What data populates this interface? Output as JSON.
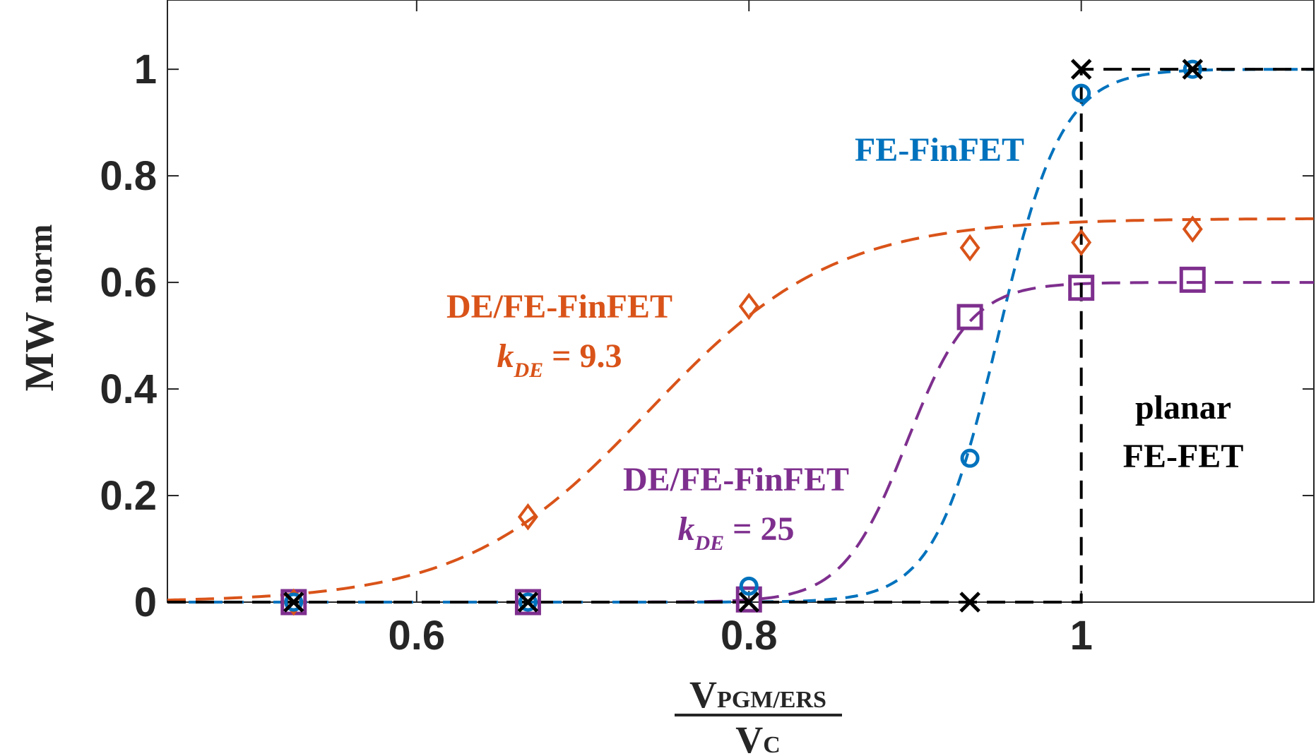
{
  "chart_data": {
    "type": "line",
    "xlabel": {
      "numerator": "V",
      "numerator_sub": "PGM/ERS",
      "denominator": "V",
      "denominator_sub": "C"
    },
    "ylabel": {
      "main": "MW",
      "sub": "norm"
    },
    "xlim": [
      0.45,
      1.14
    ],
    "ylim": [
      0,
      1.13
    ],
    "xticks": [
      0.6,
      0.8,
      1
    ],
    "xtick_labels": [
      "0.6",
      "0.8",
      "1"
    ],
    "yticks": [
      0,
      0.2,
      0.4,
      0.6,
      0.8,
      1
    ],
    "ytick_labels": [
      "0",
      "0.2",
      "0.4",
      "0.6",
      "0.8",
      "1"
    ],
    "grid": false,
    "colors": {
      "fe_finfet": "#0072BD",
      "de93": "#D95319",
      "de25": "#7E2F8E",
      "planar": "#000000",
      "axis": "#262626"
    },
    "series": [
      {
        "key": "fe_finfet",
        "marker": "circle",
        "x": [
          0.526,
          0.667,
          0.8,
          0.933,
          1.0,
          1.067
        ],
        "y": [
          0.0,
          0.0,
          0.03,
          0.27,
          0.955,
          1.0
        ],
        "fit": {
          "x0": 0.95,
          "k": 52,
          "ymax": 1.0
        }
      },
      {
        "key": "de93",
        "marker": "diamond",
        "x": [
          0.526,
          0.667,
          0.8,
          0.933,
          1.0,
          1.067
        ],
        "y": [
          0.0,
          0.16,
          0.555,
          0.665,
          0.675,
          0.7
        ],
        "fit": {
          "x0": 0.74,
          "k": 18,
          "ymax": 0.72
        }
      },
      {
        "key": "de25",
        "marker": "square",
        "x": [
          0.526,
          0.667,
          0.8,
          0.933,
          1.0,
          1.067
        ],
        "y": [
          0.0,
          0.0,
          0.005,
          0.535,
          0.59,
          0.605
        ],
        "fit": {
          "x0": 0.895,
          "k": 52,
          "ymax": 0.6
        }
      },
      {
        "key": "planar",
        "marker": "x",
        "x": [
          0.526,
          0.667,
          0.8,
          0.933,
          1.0,
          1.067
        ],
        "y": [
          0.0,
          0.0,
          0.0,
          0.0,
          1.0,
          1.0
        ],
        "step_at": 1.0
      }
    ],
    "annotations": {
      "fe_finfet": {
        "line1": "FE-FinFET"
      },
      "de93": {
        "line1": "DE/FE-FinFET",
        "k": "k",
        "k_sub": "DE",
        "k_val": " = 9.3"
      },
      "de25": {
        "line1": "DE/FE-FinFET",
        "k": "k",
        "k_sub": "DE",
        "k_val": " = 25"
      },
      "planar": {
        "line1": "planar",
        "line2": "FE-FET"
      }
    }
  }
}
